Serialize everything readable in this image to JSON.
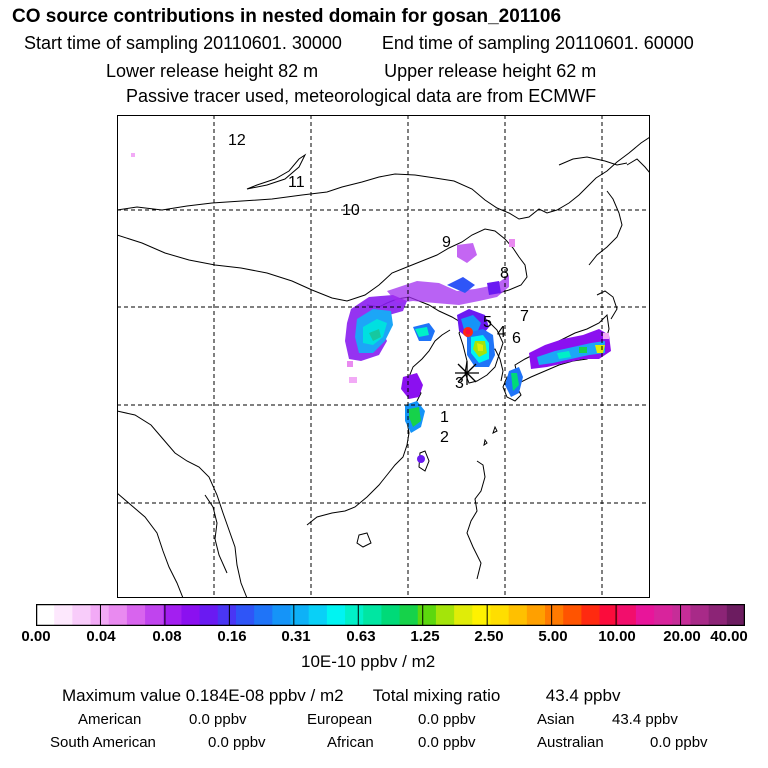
{
  "header": {
    "title": "CO  source contributions in nested domain for gosan_201106",
    "start_label": "Start time of sampling 20110601. 30000",
    "end_label": "End time of sampling 20110601. 60000",
    "lower_label": "Lower release height   82 m",
    "upper_label": "Upper release height   62 m",
    "tracer_note": "Passive tracer used, meteorological data are from ECMWF"
  },
  "map": {
    "region_labels": [
      "12",
      "11",
      "10",
      "9",
      "8",
      "7",
      "5",
      "4",
      "6",
      "3",
      "1",
      "2"
    ],
    "receptor": "gosan"
  },
  "colorbar": {
    "tick_labels": [
      "0.00",
      "0.04",
      "0.08",
      "0.16",
      "0.31",
      "0.63",
      "1.25",
      "2.50",
      "5.00",
      "10.00",
      "20.00",
      "40.00"
    ],
    "colors": [
      "#ffffff",
      "#fde8fd",
      "#f8ccfa",
      "#f2aaf6",
      "#e98af0",
      "#d864ee",
      "#c044ee",
      "#a31ff0",
      "#8b10f0",
      "#6a1af2",
      "#4a36f4",
      "#2f55f7",
      "#1f74f8",
      "#1594f8",
      "#0eb1f7",
      "#09d0f7",
      "#00f4f2",
      "#00f0c8",
      "#00e6a2",
      "#00da78",
      "#16d24a",
      "#5cd80e",
      "#a4e40a",
      "#e0ec08",
      "#fff200",
      "#ffde00",
      "#ffc000",
      "#ffa000",
      "#ff7a00",
      "#ff5400",
      "#ff2a10",
      "#fb0c3c",
      "#f20e6c",
      "#e8159a",
      "#d8249c",
      "#c62d98",
      "#a82a88",
      "#8c2476",
      "#6c1c60"
    ],
    "unit": "10E-10 ppbv / m2"
  },
  "summary": {
    "max_label": "Maximum value  0.184E-08 ppbv / m2",
    "total_label": "Total mixing ratio",
    "total_value": "43.4 ppbv",
    "rows": [
      [
        {
          "name": "American",
          "value": "0.0 ppbv"
        },
        {
          "name": "European",
          "value": "0.0 ppbv"
        },
        {
          "name": "Asian",
          "value": "43.4 ppbv"
        }
      ],
      [
        {
          "name": "South American",
          "value": "0.0 ppbv"
        },
        {
          "name": "African",
          "value": "0.0 ppbv"
        },
        {
          "name": "Australian",
          "value": "0.0 ppbv"
        }
      ]
    ]
  }
}
